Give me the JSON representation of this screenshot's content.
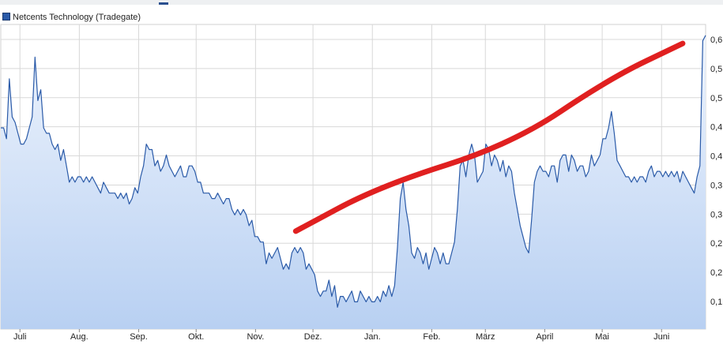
{
  "legend": {
    "label": "Netcents Technology (Tradegate)",
    "color": "#2a5aa8"
  },
  "footer": {
    "text": ""
  },
  "chart_data": {
    "type": "area",
    "title": "",
    "xlabel": "",
    "ylabel": "",
    "grid": true,
    "legend_position": "top-left",
    "line_color": "#2a5aa8",
    "fill_color_top": "#eef4fd",
    "fill_color_bottom": "#b8d0f2",
    "annotation_color": "#e02020",
    "x_ticks": [
      "Juli",
      "Aug.",
      "Sep.",
      "Okt.",
      "Nov.",
      "Dez.",
      "Jan.",
      "Feb.",
      "März",
      "April",
      "Mai",
      "Juni"
    ],
    "y_tick_labels": [
      "0,6",
      "0,5",
      "0,5",
      "0,4",
      "0,4",
      "0,3",
      "0,3",
      "0,2",
      "0,2",
      "0,1"
    ],
    "series": [
      {
        "values": [
          0.43,
          0.43,
          0.41,
          0.52,
          0.45,
          0.44,
          0.42,
          0.4,
          0.4,
          0.41,
          0.43,
          0.45,
          0.56,
          0.48,
          0.5,
          0.43,
          0.42,
          0.42,
          0.4,
          0.39,
          0.4,
          0.37,
          0.39,
          0.36,
          0.33,
          0.34,
          0.33,
          0.34,
          0.34,
          0.33,
          0.34,
          0.33,
          0.34,
          0.33,
          0.32,
          0.31,
          0.33,
          0.32,
          0.31,
          0.31,
          0.31,
          0.3,
          0.31,
          0.3,
          0.31,
          0.29,
          0.3,
          0.32,
          0.31,
          0.34,
          0.36,
          0.4,
          0.39,
          0.39,
          0.36,
          0.37,
          0.35,
          0.36,
          0.38,
          0.36,
          0.35,
          0.34,
          0.35,
          0.36,
          0.34,
          0.34,
          0.36,
          0.36,
          0.35,
          0.33,
          0.33,
          0.31,
          0.31,
          0.31,
          0.3,
          0.3,
          0.31,
          0.3,
          0.29,
          0.3,
          0.3,
          0.28,
          0.27,
          0.28,
          0.27,
          0.28,
          0.27,
          0.25,
          0.26,
          0.23,
          0.23,
          0.22,
          0.22,
          0.18,
          0.2,
          0.19,
          0.2,
          0.21,
          0.19,
          0.17,
          0.18,
          0.17,
          0.2,
          0.21,
          0.2,
          0.21,
          0.2,
          0.17,
          0.18,
          0.17,
          0.16,
          0.13,
          0.12,
          0.13,
          0.13,
          0.15,
          0.12,
          0.14,
          0.1,
          0.12,
          0.12,
          0.11,
          0.12,
          0.13,
          0.11,
          0.11,
          0.13,
          0.12,
          0.11,
          0.12,
          0.11,
          0.11,
          0.12,
          0.11,
          0.13,
          0.12,
          0.14,
          0.12,
          0.14,
          0.21,
          0.3,
          0.33,
          0.28,
          0.25,
          0.2,
          0.19,
          0.21,
          0.2,
          0.18,
          0.2,
          0.17,
          0.19,
          0.21,
          0.2,
          0.18,
          0.2,
          0.18,
          0.18,
          0.2,
          0.22,
          0.28,
          0.36,
          0.37,
          0.34,
          0.38,
          0.4,
          0.38,
          0.33,
          0.34,
          0.35,
          0.4,
          0.39,
          0.36,
          0.38,
          0.37,
          0.35,
          0.37,
          0.34,
          0.36,
          0.35,
          0.31,
          0.28,
          0.25,
          0.23,
          0.21,
          0.2,
          0.26,
          0.33,
          0.35,
          0.36,
          0.35,
          0.35,
          0.34,
          0.36,
          0.36,
          0.33,
          0.37,
          0.38,
          0.38,
          0.35,
          0.38,
          0.37,
          0.35,
          0.36,
          0.36,
          0.34,
          0.35,
          0.38,
          0.36,
          0.37,
          0.38,
          0.41,
          0.41,
          0.43,
          0.46,
          0.42,
          0.37,
          0.36,
          0.35,
          0.34,
          0.34,
          0.33,
          0.34,
          0.33,
          0.34,
          0.34,
          0.33,
          0.35,
          0.36,
          0.34,
          0.35,
          0.35,
          0.34,
          0.35,
          0.34,
          0.35,
          0.34,
          0.35,
          0.33,
          0.35,
          0.34,
          0.33,
          0.32,
          0.31,
          0.34,
          0.36,
          0.59,
          0.6
        ],
        "x_start": "2021-06-21",
        "x_end": "2022-06-24"
      }
    ],
    "annotation": {
      "type": "freehand-line",
      "points": [
        [
          "2021-11-22",
          0.24
        ],
        [
          "2022-01-05",
          0.323
        ],
        [
          "2022-03-15",
          0.4
        ],
        [
          "2022-05-05",
          0.521
        ],
        [
          "2022-06-12",
          0.585
        ]
      ]
    }
  }
}
